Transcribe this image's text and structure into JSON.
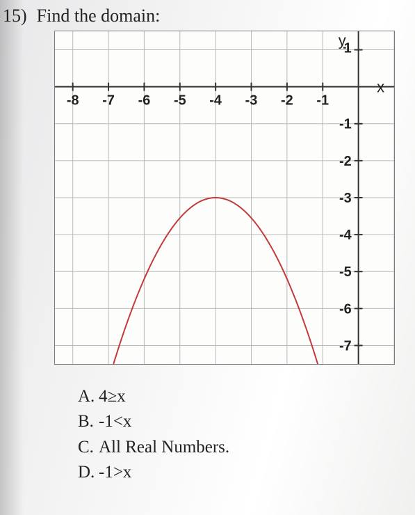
{
  "question": {
    "number": "15)",
    "prompt": "Find the domain:"
  },
  "chart": {
    "type": "line",
    "x_min": -8.5,
    "x_max": 1.0,
    "y_min": -7.5,
    "y_max": 1.5,
    "x_ticks": [
      -8,
      -7,
      -6,
      -5,
      -4,
      -3,
      -2,
      -1
    ],
    "y_ticks": [
      1,
      -1,
      -2,
      -3,
      -4,
      -5,
      -6,
      -7
    ],
    "x_axis_label": "x",
    "y_axis_label": "y",
    "grid_color": "#b8b8b8",
    "axis_color": "#333333",
    "tick_font_size": 20,
    "axis_label_font_size": 22,
    "background_color": "#fdfdfc",
    "curve": {
      "color": "#c23a3a",
      "width": 2,
      "vertex_x": -4,
      "vertex_y": -3,
      "a": -0.55,
      "x_samples": [
        -6.9,
        -6.5,
        -6.0,
        -5.5,
        -5.0,
        -4.5,
        -4.0,
        -3.5,
        -3.0,
        -2.5,
        -2.0,
        -1.5,
        -1.1
      ]
    }
  },
  "answers": [
    {
      "letter": "A.",
      "text": "4≥x"
    },
    {
      "letter": "B.",
      "text": "-1<x"
    },
    {
      "letter": "C.",
      "text": "All Real Numbers."
    },
    {
      "letter": "D.",
      "text": "-1>x"
    }
  ]
}
